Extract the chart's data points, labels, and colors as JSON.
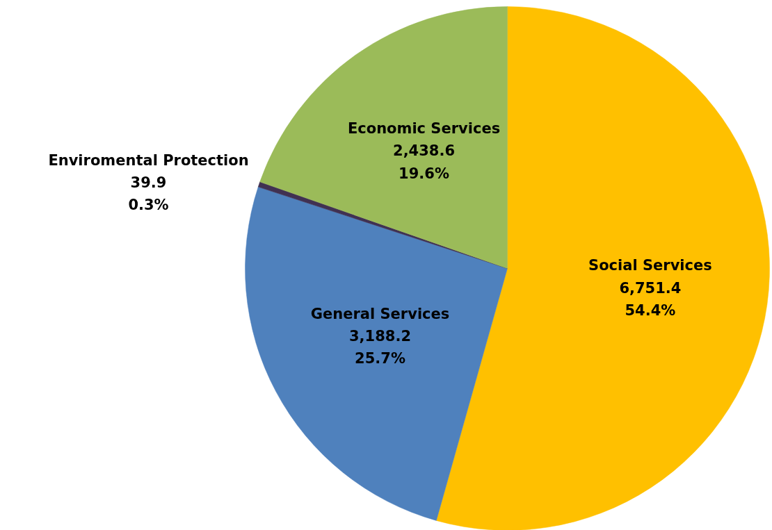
{
  "chart_data": {
    "type": "pie",
    "categories": [
      "Social Services",
      "General Services",
      "Enviromental Protection",
      "Economic Services"
    ],
    "values": [
      6751.4,
      3188.2,
      39.9,
      2438.6
    ],
    "colors": [
      "#ffc000",
      "#4f81bd",
      "#403152",
      "#9bbb59"
    ],
    "value_labels": [
      "6,751.4\n54.4%",
      "3,188.2\n25.7%",
      "39.9\n0.3%",
      "2,438.6\n19.6%"
    ],
    "legend": false
  }
}
